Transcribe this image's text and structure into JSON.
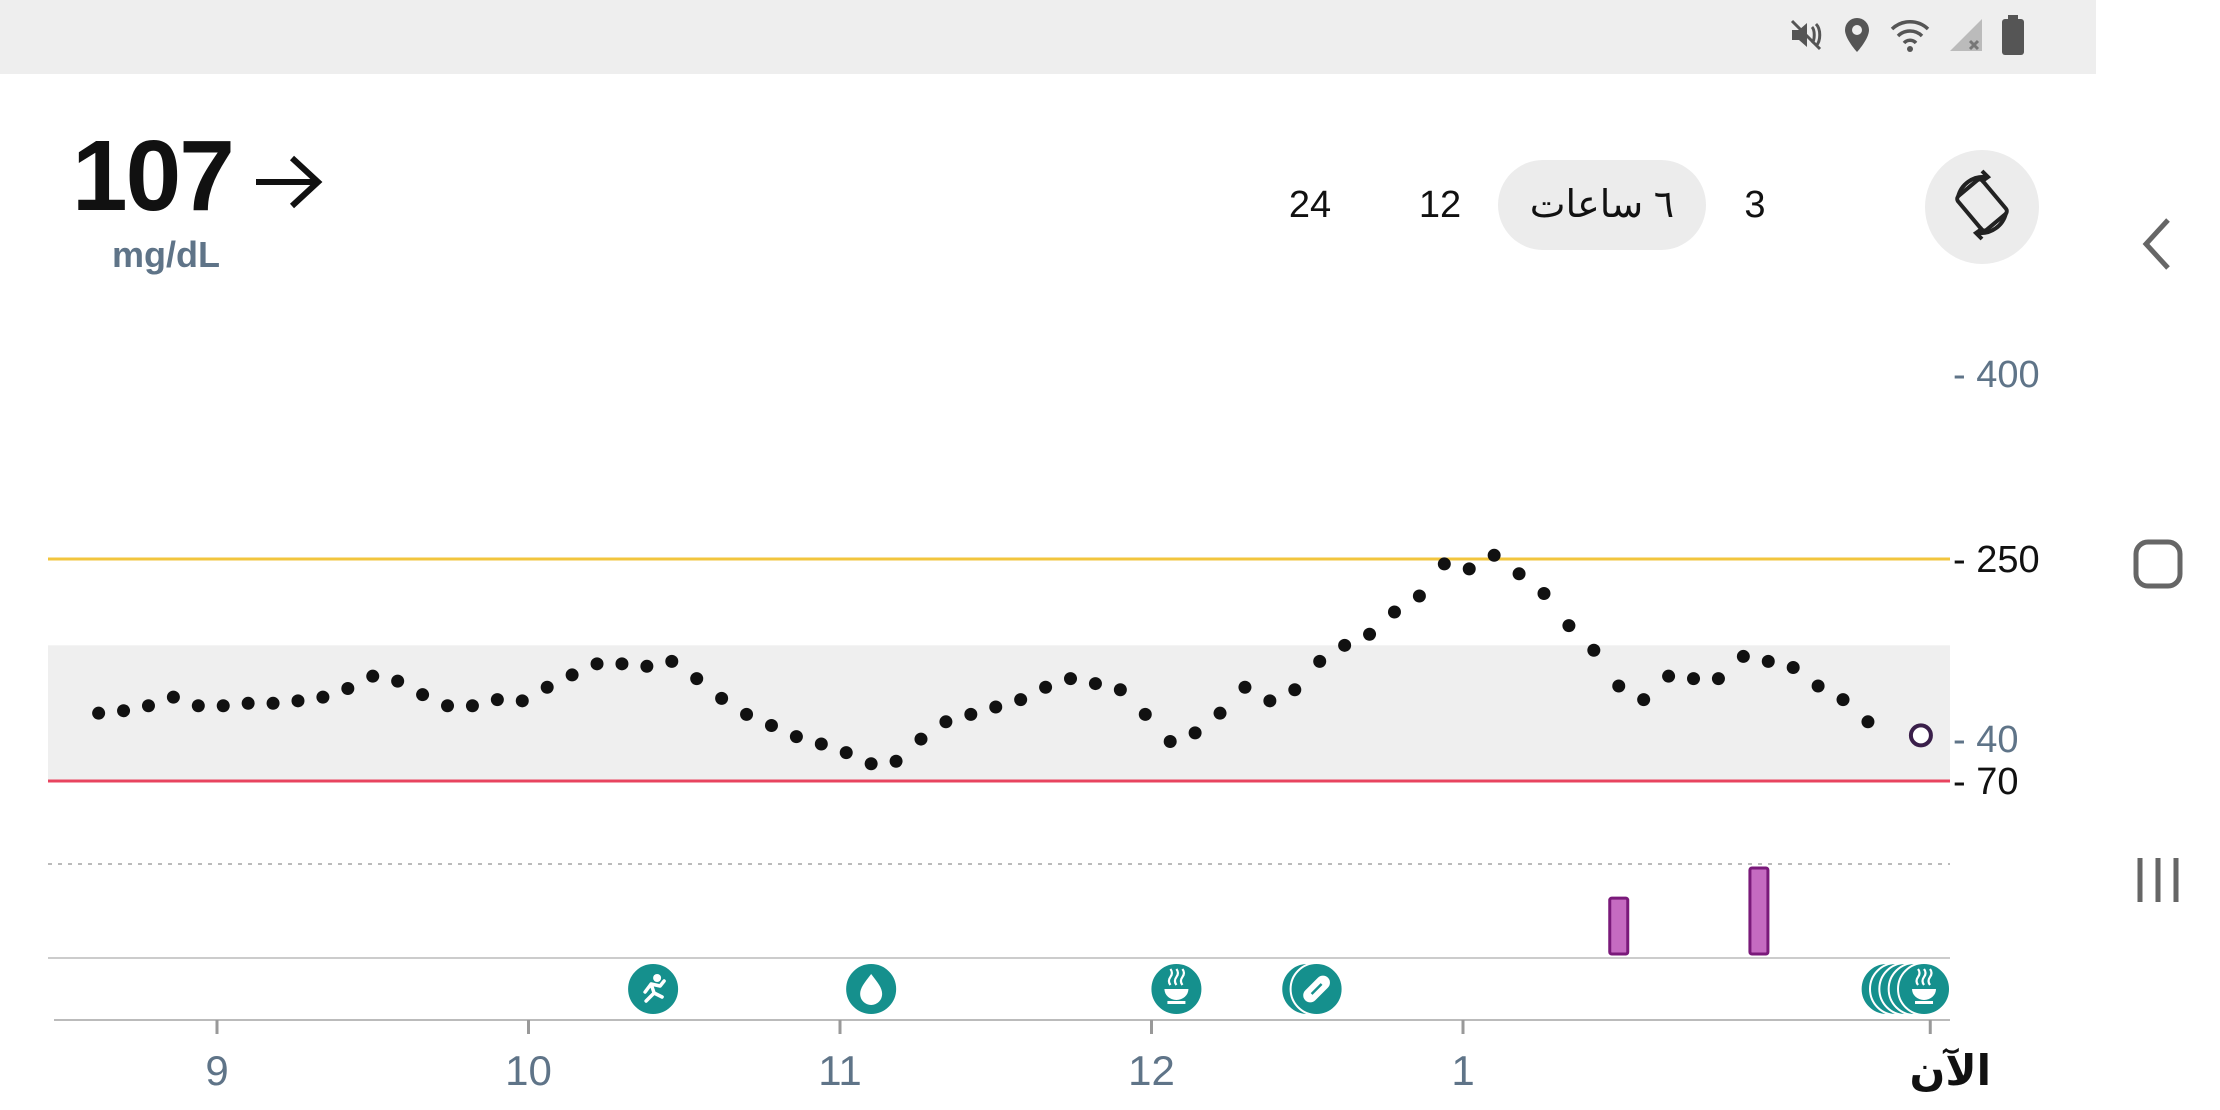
{
  "status_bar": {
    "icons": [
      "mute-icon",
      "location-icon",
      "wifi-icon",
      "signal-icon",
      "battery-icon"
    ]
  },
  "reading": {
    "value": "107",
    "trend": "steady",
    "trend_icon": "arrow-right-icon",
    "unit": "mg/dL"
  },
  "range_tabs": [
    {
      "label": "24",
      "selected": false
    },
    {
      "label": "12",
      "selected": false
    },
    {
      "label": "٦ ساعات",
      "selected": true
    },
    {
      "label": "3",
      "selected": false
    }
  ],
  "rotate_button": {
    "icon": "screen-rotate-icon"
  },
  "navbar": {
    "icons": [
      "back-icon",
      "home-icon",
      "recents-icon"
    ]
  },
  "colors": {
    "high_line": "#f2c53d",
    "low_line": "#e8445f",
    "target_band": "#efefef",
    "insulin": "#c56bc1",
    "insulin_border": "#7a1a7a",
    "event": "#15908d",
    "point": "#111111"
  },
  "chart_data": {
    "type": "scatter",
    "y_axis_ticks": [
      {
        "value": 400,
        "label": "- 400",
        "emphasis": false
      },
      {
        "value": 250,
        "label": "- 250",
        "emphasis": true
      },
      {
        "value": 70,
        "label": "- 70",
        "emphasis": true
      },
      {
        "value": 40,
        "label": "- 40",
        "emphasis": false
      }
    ],
    "high_threshold": 250,
    "low_threshold": 70,
    "target_range": [
      70,
      180
    ],
    "x_ticks": [
      {
        "hour": 9,
        "label": "9"
      },
      {
        "hour": 10,
        "label": "10"
      },
      {
        "hour": 11,
        "label": "11"
      },
      {
        "hour": 12,
        "label": "12"
      },
      {
        "hour": 13,
        "label": "1"
      },
      {
        "hour": 14.5,
        "label": "الآن"
      }
    ],
    "readings": [
      {
        "hour": 8.62,
        "value": 125
      },
      {
        "hour": 8.7,
        "value": 127
      },
      {
        "hour": 8.78,
        "value": 131
      },
      {
        "hour": 8.86,
        "value": 138
      },
      {
        "hour": 8.94,
        "value": 131
      },
      {
        "hour": 9.02,
        "value": 131
      },
      {
        "hour": 9.1,
        "value": 133
      },
      {
        "hour": 9.18,
        "value": 133
      },
      {
        "hour": 9.26,
        "value": 135
      },
      {
        "hour": 9.34,
        "value": 138
      },
      {
        "hour": 9.42,
        "value": 145
      },
      {
        "hour": 9.5,
        "value": 155
      },
      {
        "hour": 9.58,
        "value": 151
      },
      {
        "hour": 9.66,
        "value": 140
      },
      {
        "hour": 9.74,
        "value": 131
      },
      {
        "hour": 9.82,
        "value": 131
      },
      {
        "hour": 9.9,
        "value": 136
      },
      {
        "hour": 9.98,
        "value": 135
      },
      {
        "hour": 10.06,
        "value": 146
      },
      {
        "hour": 10.14,
        "value": 156
      },
      {
        "hour": 10.22,
        "value": 165
      },
      {
        "hour": 10.3,
        "value": 165
      },
      {
        "hour": 10.38,
        "value": 163
      },
      {
        "hour": 10.46,
        "value": 167
      },
      {
        "hour": 10.54,
        "value": 153
      },
      {
        "hour": 10.62,
        "value": 137
      },
      {
        "hour": 10.7,
        "value": 124
      },
      {
        "hour": 10.78,
        "value": 115
      },
      {
        "hour": 10.86,
        "value": 106
      },
      {
        "hour": 10.94,
        "value": 100
      },
      {
        "hour": 11.02,
        "value": 93
      },
      {
        "hour": 11.1,
        "value": 84
      },
      {
        "hour": 11.18,
        "value": 86
      },
      {
        "hour": 11.26,
        "value": 104
      },
      {
        "hour": 11.34,
        "value": 118
      },
      {
        "hour": 11.42,
        "value": 124
      },
      {
        "hour": 11.5,
        "value": 130
      },
      {
        "hour": 11.58,
        "value": 136
      },
      {
        "hour": 11.66,
        "value": 146
      },
      {
        "hour": 11.74,
        "value": 153
      },
      {
        "hour": 11.82,
        "value": 149
      },
      {
        "hour": 11.9,
        "value": 144
      },
      {
        "hour": 11.98,
        "value": 124
      },
      {
        "hour": 12.06,
        "value": 102
      },
      {
        "hour": 12.14,
        "value": 109
      },
      {
        "hour": 12.22,
        "value": 125
      },
      {
        "hour": 12.3,
        "value": 146
      },
      {
        "hour": 12.38,
        "value": 135
      },
      {
        "hour": 12.46,
        "value": 144
      },
      {
        "hour": 12.54,
        "value": 167
      },
      {
        "hour": 12.62,
        "value": 180
      },
      {
        "hour": 12.7,
        "value": 189
      },
      {
        "hour": 12.78,
        "value": 207
      },
      {
        "hour": 12.86,
        "value": 220
      },
      {
        "hour": 12.94,
        "value": 246
      },
      {
        "hour": 13.02,
        "value": 242
      },
      {
        "hour": 13.1,
        "value": 253
      },
      {
        "hour": 13.18,
        "value": 238
      },
      {
        "hour": 13.26,
        "value": 222
      },
      {
        "hour": 13.34,
        "value": 196
      },
      {
        "hour": 13.42,
        "value": 176
      },
      {
        "hour": 13.5,
        "value": 147
      },
      {
        "hour": 13.58,
        "value": 136
      },
      {
        "hour": 13.66,
        "value": 155
      },
      {
        "hour": 13.74,
        "value": 153
      },
      {
        "hour": 13.82,
        "value": 153
      },
      {
        "hour": 13.9,
        "value": 171
      },
      {
        "hour": 13.98,
        "value": 167
      },
      {
        "hour": 14.06,
        "value": 162
      },
      {
        "hour": 14.14,
        "value": 147
      },
      {
        "hour": 14.22,
        "value": 136
      },
      {
        "hour": 14.3,
        "value": 118
      }
    ],
    "current_reading": {
      "hour": 14.47,
      "value": 107
    },
    "insulin_doses": [
      {
        "hour": 13.5,
        "amount": 0.65
      },
      {
        "hour": 13.95,
        "amount": 1.0
      }
    ],
    "events": [
      {
        "hour": 10.4,
        "type": "exercise",
        "icon": "running-icon"
      },
      {
        "hour": 11.1,
        "type": "blood-glucose",
        "icon": "drop-icon"
      },
      {
        "hour": 12.08,
        "type": "meal",
        "icon": "meal-icon"
      },
      {
        "hour": 12.5,
        "type": "medication",
        "icon": "pill-icon"
      },
      {
        "hour": 12.53,
        "type": "medication",
        "icon": "pill-icon"
      },
      {
        "hour": 14.36,
        "type": "meal",
        "icon": "meal-icon"
      },
      {
        "hour": 14.39,
        "type": "meal",
        "icon": "meal-icon"
      },
      {
        "hour": 14.42,
        "type": "meal",
        "icon": "meal-icon"
      },
      {
        "hour": 14.45,
        "type": "meal",
        "icon": "meal-icon"
      },
      {
        "hour": 14.48,
        "type": "meal",
        "icon": "meal-icon"
      }
    ]
  }
}
